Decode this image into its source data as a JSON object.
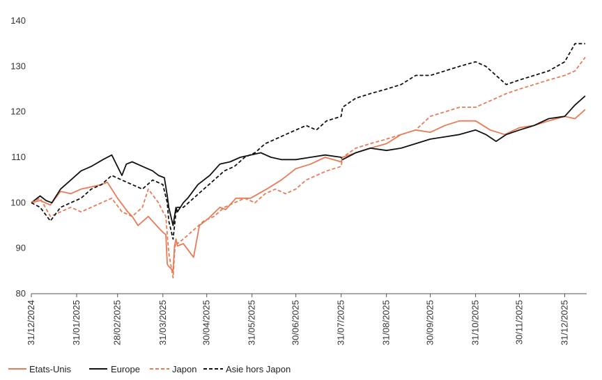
{
  "colors": {
    "etats_unis": "#ea7a55",
    "europe": "#111111",
    "japon": "#ea7a55",
    "asie": "#111111",
    "axis": "#555555"
  },
  "chart_data": {
    "type": "line",
    "title": "",
    "xlabel": "",
    "ylabel": "",
    "ylim": [
      80,
      140
    ],
    "yticks": [
      "80",
      "90",
      "100",
      "110",
      "120",
      "130",
      "140"
    ],
    "xlim": [
      "2024-12-31",
      "2026-01-15"
    ],
    "xticks": [
      "31/12/2024",
      "31/01/2025",
      "28/02/2025",
      "31/03/2025",
      "30/04/2025",
      "31/05/2025",
      "30/06/2025",
      "31/07/2025",
      "31/08/2025",
      "30/09/2025",
      "31/10/2025",
      "30/11/2025",
      "31/12/2025"
    ],
    "grid": false,
    "legend": "bottom-left",
    "series": [
      {
        "name": "Etats-Unis",
        "style": "solid",
        "color": "#ea7a55",
        "x": [
          "2024-12-31",
          "2025-01-06",
          "2025-01-13",
          "2025-01-20",
          "2025-01-27",
          "2025-02-03",
          "2025-02-10",
          "2025-02-17",
          "2025-02-21",
          "2025-02-28",
          "2025-03-07",
          "2025-03-10",
          "2025-03-14",
          "2025-03-21",
          "2025-03-28",
          "2025-03-31",
          "2025-04-02",
          "2025-04-03",
          "2025-04-04",
          "2025-04-07",
          "2025-04-08",
          "2025-04-09",
          "2025-04-10",
          "2025-04-14",
          "2025-04-21",
          "2025-04-25",
          "2025-05-01",
          "2025-05-09",
          "2025-05-13",
          "2025-05-20",
          "2025-05-30",
          "2025-06-10",
          "2025-06-20",
          "2025-06-30",
          "2025-07-10",
          "2025-07-20",
          "2025-07-31",
          "2025-08-01",
          "2025-08-10",
          "2025-08-20",
          "2025-08-31",
          "2025-09-10",
          "2025-09-20",
          "2025-09-30",
          "2025-10-10",
          "2025-10-20",
          "2025-10-31",
          "2025-11-10",
          "2025-11-20",
          "2025-11-30",
          "2025-12-10",
          "2025-12-20",
          "2025-12-31",
          "2026-01-07",
          "2026-01-14"
        ],
        "y": [
          100,
          100.5,
          99.5,
          102.5,
          102,
          103,
          103.5,
          104,
          104.5,
          101,
          98,
          97,
          95,
          97,
          94.5,
          93.5,
          93,
          86.5,
          86,
          85,
          90.5,
          92,
          90.5,
          91,
          88,
          95,
          96.5,
          99,
          98.5,
          101,
          101,
          103,
          105,
          107.5,
          108.5,
          110,
          109,
          110,
          111,
          112,
          113,
          115,
          116,
          115.5,
          117,
          118,
          118,
          116,
          115,
          116.5,
          117,
          118,
          119,
          118.5,
          120.5
        ]
      },
      {
        "name": "Europe",
        "style": "solid",
        "color": "#111111",
        "x": [
          "2024-12-31",
          "2025-01-06",
          "2025-01-10",
          "2025-01-14",
          "2025-01-20",
          "2025-01-27",
          "2025-02-03",
          "2025-02-10",
          "2025-02-18",
          "2025-02-24",
          "2025-03-03",
          "2025-03-06",
          "2025-03-10",
          "2025-03-17",
          "2025-03-24",
          "2025-03-28",
          "2025-04-01",
          "2025-04-03",
          "2025-04-04",
          "2025-04-07",
          "2025-04-08",
          "2025-04-09",
          "2025-04-10",
          "2025-04-14",
          "2025-04-17",
          "2025-04-24",
          "2025-05-02",
          "2025-05-09",
          "2025-05-16",
          "2025-05-23",
          "2025-05-30",
          "2025-06-06",
          "2025-06-13",
          "2025-06-20",
          "2025-06-30",
          "2025-07-10",
          "2025-07-20",
          "2025-07-31",
          "2025-08-01",
          "2025-08-10",
          "2025-08-20",
          "2025-08-31",
          "2025-09-10",
          "2025-09-20",
          "2025-09-30",
          "2025-10-10",
          "2025-10-20",
          "2025-10-31",
          "2025-11-07",
          "2025-11-14",
          "2025-11-21",
          "2025-11-30",
          "2025-12-10",
          "2025-12-20",
          "2025-12-31",
          "2026-01-07",
          "2026-01-14"
        ],
        "y": [
          100,
          101.5,
          100.5,
          100,
          103,
          105,
          107,
          108,
          109.5,
          110.5,
          106,
          108.5,
          109,
          108,
          107,
          106,
          105.5,
          101.5,
          99,
          95,
          97,
          99,
          98,
          100,
          101,
          104,
          106,
          108.5,
          109,
          110,
          110.5,
          111,
          110,
          109.5,
          109.5,
          110,
          110.5,
          110,
          109.5,
          111,
          112,
          111.5,
          112,
          113,
          114,
          114.5,
          115,
          116,
          115,
          113.5,
          115,
          116,
          117,
          118.5,
          119,
          121.5,
          123.5
        ]
      },
      {
        "name": "Japon",
        "style": "dashed",
        "color": "#ea7a55",
        "x": [
          "2024-12-31",
          "2025-01-06",
          "2025-01-13",
          "2025-01-20",
          "2025-01-27",
          "2025-02-03",
          "2025-02-10",
          "2025-02-17",
          "2025-02-24",
          "2025-03-03",
          "2025-03-10",
          "2025-03-17",
          "2025-03-21",
          "2025-03-28",
          "2025-03-31",
          "2025-04-02",
          "2025-04-03",
          "2025-04-04",
          "2025-04-07",
          "2025-04-08",
          "2025-04-09",
          "2025-04-10",
          "2025-04-14",
          "2025-04-21",
          "2025-04-28",
          "2025-05-05",
          "2025-05-12",
          "2025-05-19",
          "2025-05-26",
          "2025-06-02",
          "2025-06-09",
          "2025-06-16",
          "2025-06-23",
          "2025-06-30",
          "2025-07-07",
          "2025-07-14",
          "2025-07-21",
          "2025-07-31",
          "2025-08-01",
          "2025-08-10",
          "2025-08-20",
          "2025-08-31",
          "2025-09-10",
          "2025-09-20",
          "2025-09-30",
          "2025-10-10",
          "2025-10-20",
          "2025-10-31",
          "2025-11-07",
          "2025-11-14",
          "2025-11-21",
          "2025-11-30",
          "2025-12-10",
          "2025-12-20",
          "2025-12-31",
          "2026-01-07",
          "2026-01-14"
        ],
        "y": [
          100,
          101,
          97,
          98,
          99,
          98,
          99,
          100,
          101,
          98,
          97,
          99,
          103,
          100,
          98,
          97,
          93,
          89,
          83.5,
          89,
          92,
          91,
          92,
          94,
          96,
          97,
          99,
          100,
          101,
          100,
          102,
          103,
          102,
          103,
          105,
          106,
          107,
          108,
          110,
          112,
          113,
          114,
          115,
          116,
          119,
          120,
          121,
          121,
          122,
          123,
          124,
          125,
          126,
          127,
          128,
          129,
          132
        ]
      },
      {
        "name": "Asie hors Japon",
        "style": "dashed",
        "color": "#111111",
        "x": [
          "2024-12-31",
          "2025-01-06",
          "2025-01-13",
          "2025-01-20",
          "2025-01-27",
          "2025-02-03",
          "2025-02-10",
          "2025-02-17",
          "2025-02-24",
          "2025-03-03",
          "2025-03-10",
          "2025-03-17",
          "2025-03-24",
          "2025-03-31",
          "2025-04-03",
          "2025-04-04",
          "2025-04-07",
          "2025-04-08",
          "2025-04-09",
          "2025-04-10",
          "2025-04-14",
          "2025-04-21",
          "2025-04-28",
          "2025-05-05",
          "2025-05-12",
          "2025-05-19",
          "2025-05-26",
          "2025-06-02",
          "2025-06-09",
          "2025-06-16",
          "2025-06-23",
          "2025-06-30",
          "2025-07-07",
          "2025-07-14",
          "2025-07-21",
          "2025-07-31",
          "2025-08-01",
          "2025-08-10",
          "2025-08-20",
          "2025-08-31",
          "2025-09-10",
          "2025-09-20",
          "2025-09-30",
          "2025-10-10",
          "2025-10-20",
          "2025-10-31",
          "2025-11-07",
          "2025-11-14",
          "2025-11-21",
          "2025-11-30",
          "2025-12-10",
          "2025-12-20",
          "2025-12-31",
          "2026-01-07",
          "2026-01-14"
        ],
        "y": [
          100,
          99,
          96,
          99,
          100,
          101,
          103,
          104,
          106,
          105,
          104,
          103,
          105,
          104,
          100,
          96,
          92,
          95,
          98,
          99,
          99,
          101,
          103,
          105,
          107,
          108,
          110,
          111,
          113,
          114,
          115,
          116,
          117,
          116,
          118,
          119,
          121,
          123,
          124,
          125,
          126,
          128,
          128,
          129,
          130,
          131,
          130,
          128,
          126,
          127,
          128,
          129,
          131,
          135,
          135
        ]
      }
    ]
  }
}
